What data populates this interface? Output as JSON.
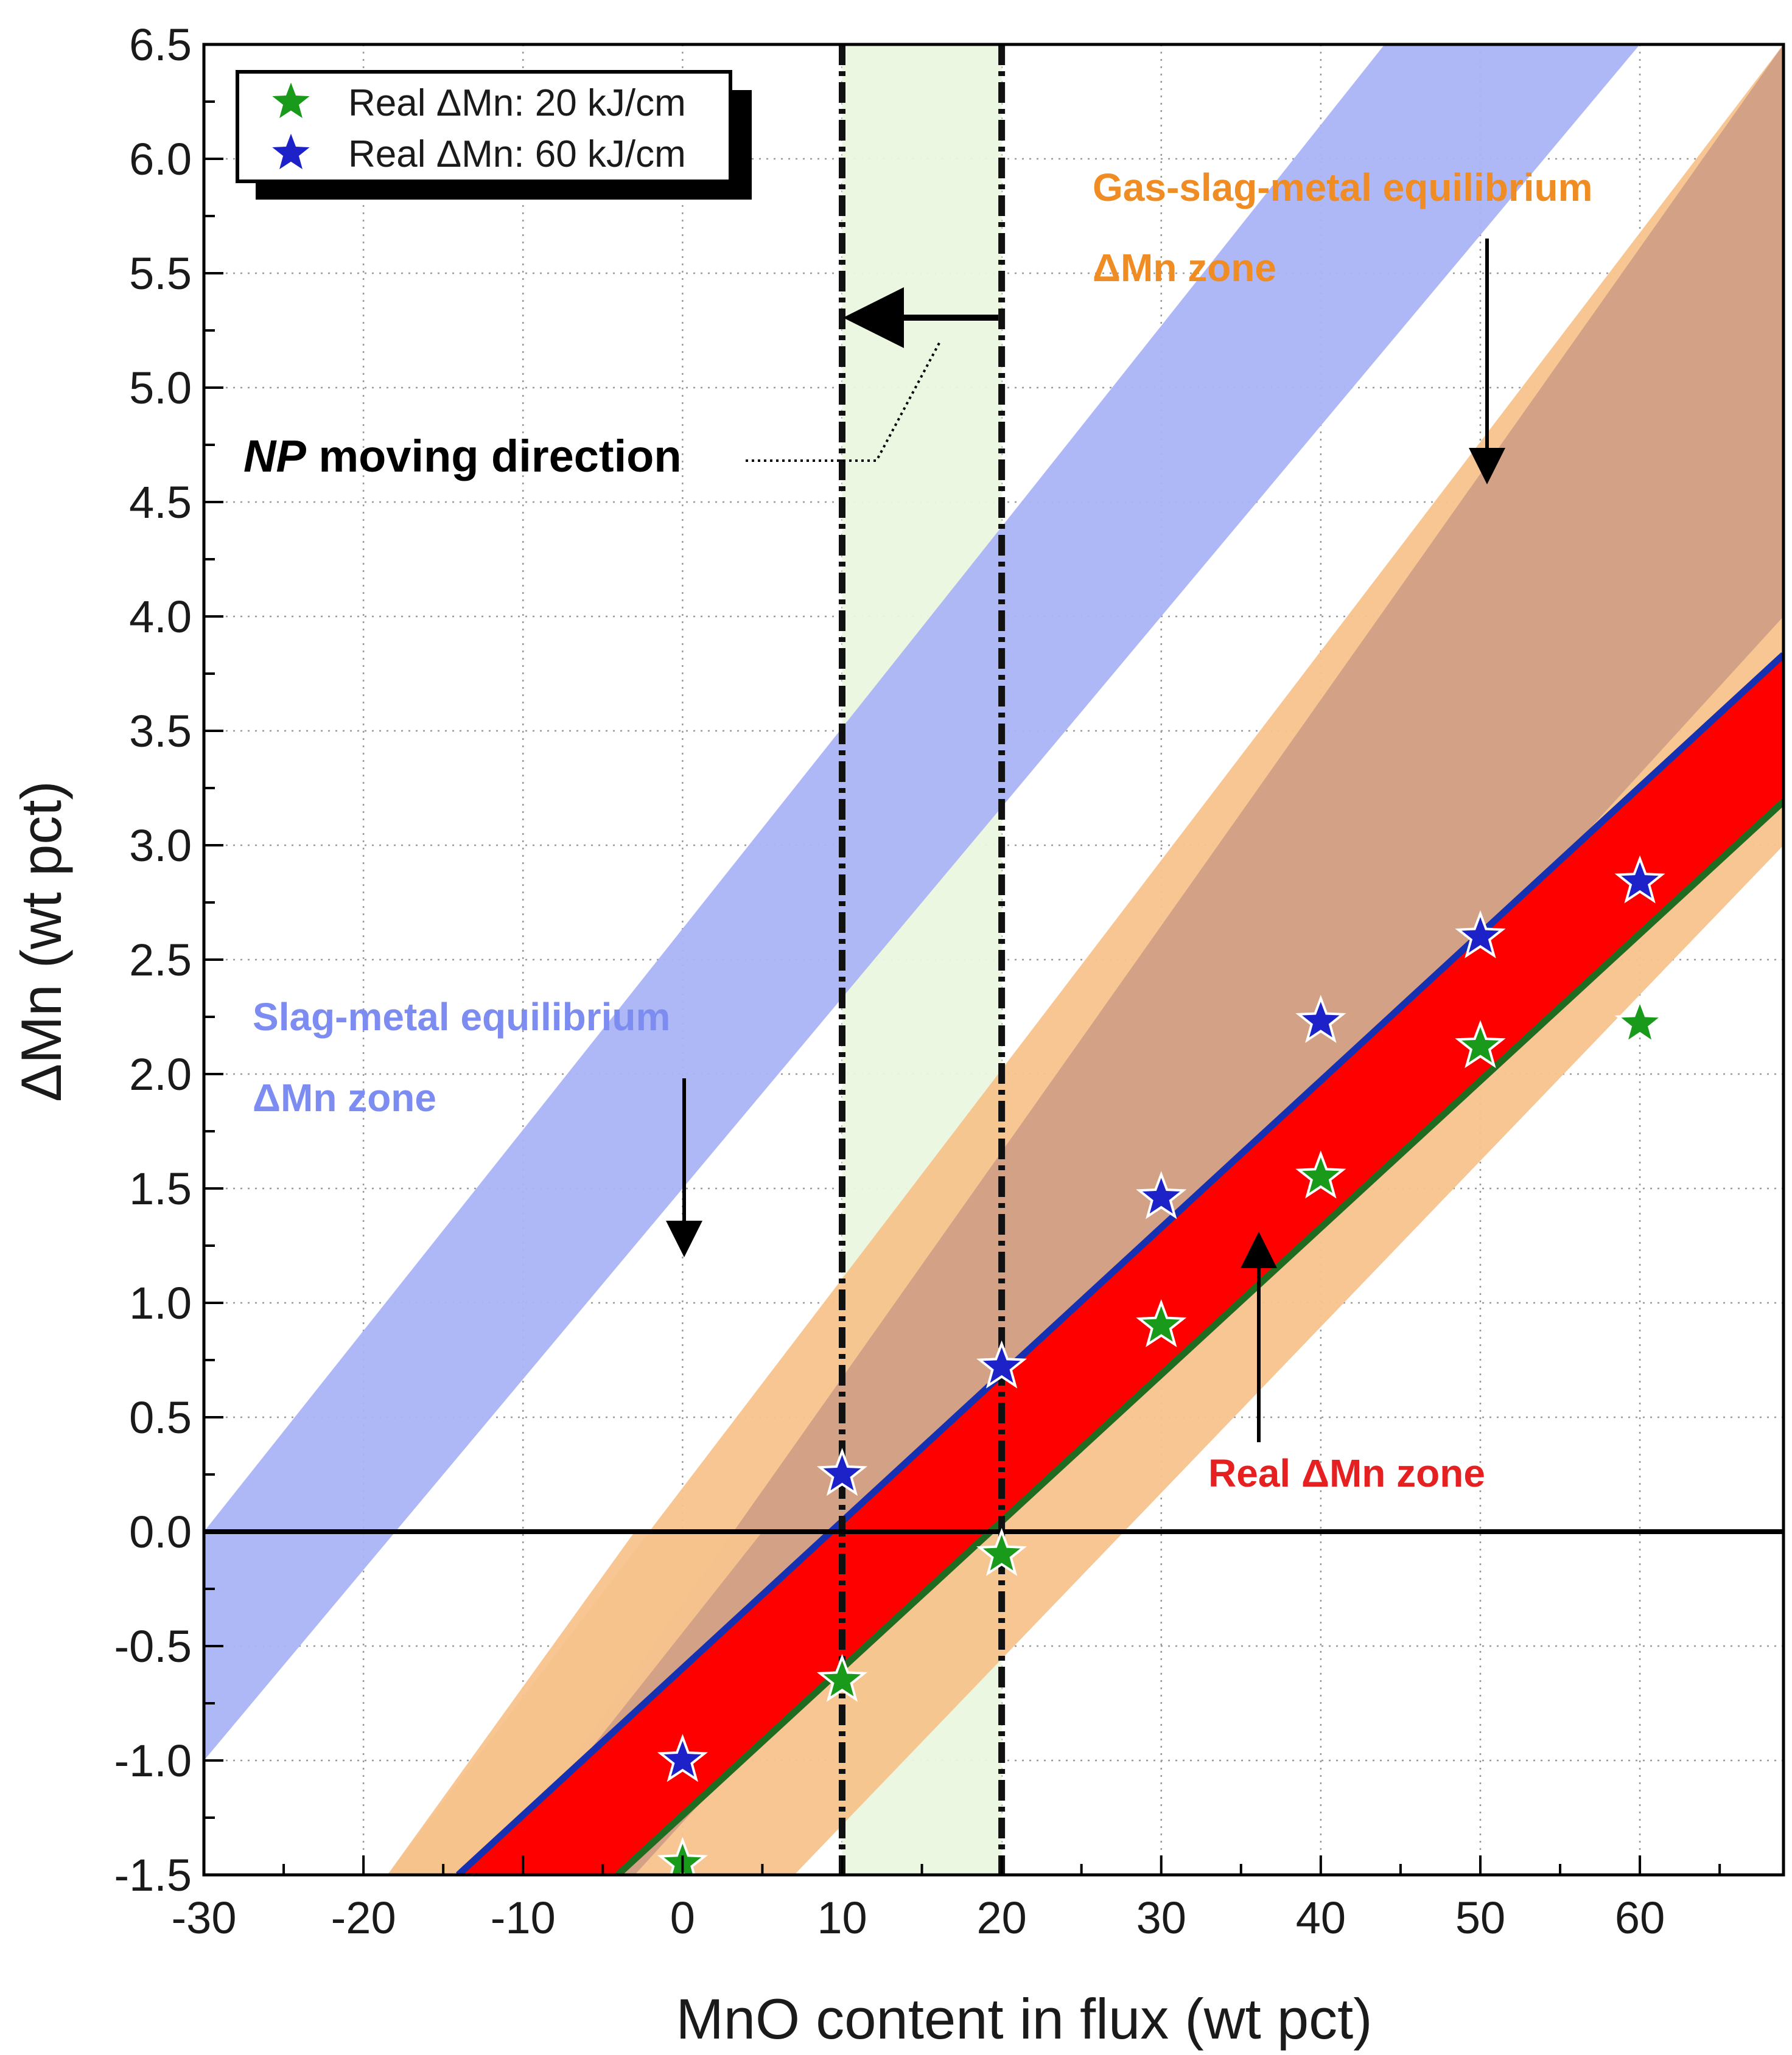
{
  "colors": {
    "green_star": "#1a9a1a",
    "blue_star": "#1c22c8",
    "slag_zone": "#aab4f5",
    "gas_zone_a": "#f7c38c",
    "gas_zone_b": "#d2a085",
    "real_zone": "#ff0000",
    "blue_line": "#1530b0",
    "green_line": "#1f6b1f",
    "np_band": "#eaf7de",
    "slag_text": "#7c8cf0",
    "gas_text": "#f08c24",
    "real_text": "#e62020"
  },
  "chart_data": {
    "type": "scatter",
    "xlabel": "MnO content in flux (wt pct)",
    "ylabel": "ΔMn (wt pct)",
    "xlim": [
      -30,
      69
    ],
    "ylim": [
      -1.5,
      6.5
    ],
    "xticks": [
      "-30",
      "-20",
      "-10",
      "0",
      "10",
      "20",
      "30",
      "40",
      "50",
      "60"
    ],
    "yticks": [
      "6.5",
      "6.0",
      "5.5",
      "5.0",
      "4.5",
      "4.0",
      "3.5",
      "3.0",
      "2.5",
      "2.0",
      "1.5",
      "1.0",
      "0.5",
      "0.0",
      "-0.5",
      "-1.0",
      "-1.5"
    ],
    "grid": true,
    "legend_position": "top-left",
    "series": [
      {
        "name": "Real ΔMn: 20 kJ/cm",
        "marker": "star",
        "x": [
          0,
          10,
          20,
          30,
          40,
          50,
          60
        ],
        "y": [
          -1.45,
          -0.65,
          -0.1,
          0.9,
          1.55,
          2.12,
          2.22
        ]
      },
      {
        "name": "Real ΔMn: 60 kJ/cm",
        "marker": "star",
        "x": [
          0,
          10,
          20,
          30,
          40,
          50,
          60
        ],
        "y": [
          -1.0,
          0.25,
          0.72,
          1.46,
          2.23,
          2.6,
          2.84
        ]
      }
    ],
    "zones": {
      "slag_metal": {
        "x_at_zero": [
          -30,
          -18
        ],
        "x_at_top": [
          44,
          60
        ]
      },
      "gas_slag_metal_upper": {
        "x_at_zero": [
          -3,
          24
        ],
        "x_at_top": [
          69,
          69
        ]
      },
      "gas_slag_metal_lower": {
        "x_at_zero": [
          -17,
          -8
        ],
        "x_at_top": [
          69,
          69
        ]
      },
      "real_upper_line": {
        "x0": 9.3,
        "slope": 0.0642
      },
      "real_lower_line": {
        "x0": 19.3,
        "slope": 0.0642
      }
    },
    "np_band": [
      10,
      20
    ],
    "annotations": {
      "gas_zone_line1": "Gas-slag-metal equilibrium",
      "gas_zone_line2": "ΔMn zone",
      "slag_zone_line1": "Slag-metal equilibrium",
      "slag_zone_line2": "ΔMn zone",
      "real_zone": "Real ΔMn zone",
      "np_label_italic": "NP",
      "np_label_rest": " moving direction"
    }
  }
}
